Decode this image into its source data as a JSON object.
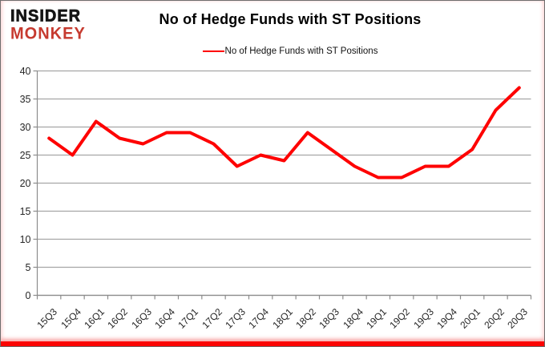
{
  "logo": {
    "line1": "INSIDER",
    "line2": "MONKEY"
  },
  "chart": {
    "title": "No of Hedge Funds with ST Positions",
    "legend_label": "No of Hedge Funds with ST Positions"
  },
  "colors": {
    "series_line": "#FE0000",
    "logo_red": "#C63A2F",
    "grid": "#A6A6A6",
    "axis": "#8C8C8C",
    "bottom_bar": "#FB0402"
  },
  "chart_data": {
    "type": "line",
    "title": "No of Hedge Funds with ST Positions",
    "legend": [
      "No of Hedge Funds with ST Positions"
    ],
    "legend_position": "top-center",
    "grid": true,
    "xlabel": "",
    "ylabel": "",
    "ylim": [
      0,
      40
    ],
    "y_ticks": [
      0,
      5,
      10,
      15,
      20,
      25,
      30,
      35,
      40
    ],
    "categories": [
      "15Q3",
      "15Q4",
      "16Q1",
      "16Q2",
      "16Q3",
      "16Q4",
      "17Q1",
      "17Q2",
      "17Q3",
      "17Q4",
      "18Q1",
      "18Q2",
      "18Q3",
      "18Q4",
      "19Q1",
      "19Q2",
      "19Q3",
      "19Q4",
      "20Q1",
      "20Q2",
      "20Q3"
    ],
    "series": [
      {
        "name": "No of Hedge Funds with ST Positions",
        "values": [
          28,
          25,
          31,
          28,
          27,
          29,
          29,
          27,
          23,
          25,
          24,
          29,
          26,
          23,
          21,
          21,
          23,
          23,
          26,
          33,
          37
        ]
      }
    ]
  }
}
